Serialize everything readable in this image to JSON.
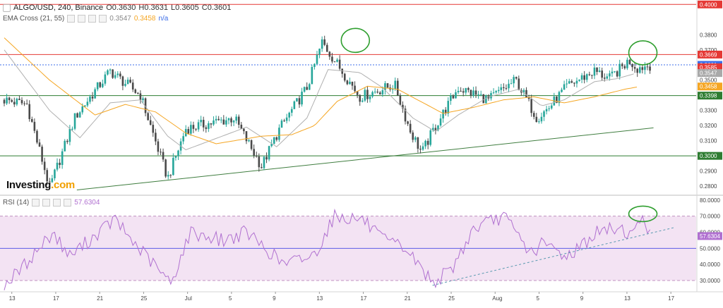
{
  "header": {
    "symbol": "ALGO/USD, 240, Binance",
    "ohlc": [
      {
        "k": "O",
        "v": "0.3630"
      },
      {
        "k": "H",
        "v": "0.3631"
      },
      {
        "k": "L",
        "v": "0.3605"
      },
      {
        "k": "C",
        "v": "0.3601"
      }
    ],
    "ema_label": "EMA Cross (21, 55)",
    "ema_fast": "0.3547",
    "ema_slow": "0.3458",
    "ema_na": "n/a"
  },
  "rsi_label": "RSI (14)",
  "rsi_value": "57.6304",
  "logo": {
    "text": "Investing",
    "suffix": ".com"
  },
  "colors": {
    "up": "#26a69a",
    "down": "#4a4a4a",
    "ema_fast": "#b0b0b0",
    "ema_slow": "#f5a623",
    "resistance": "#e53935",
    "support": "#2e7d32",
    "rsi": "#b070d0",
    "rsi_band": "#f3e3f3",
    "rsi_mid": "#5c5ce6",
    "circle": "#2e9e2e"
  },
  "chart_data": [
    {
      "type": "candlestick",
      "title": "ALGO/USD, 240, Binance",
      "y_ticks": [
        "0.3800",
        "0.3700",
        "0.3600",
        "0.3500",
        "0.3400",
        "0.3300",
        "0.3200",
        "0.3100",
        "0.3000",
        "0.2900",
        "0.2800"
      ],
      "x_ticks": [
        "13",
        "17",
        "21",
        "25",
        "Jul",
        "5",
        "9",
        "13",
        "17",
        "21",
        "25",
        "Aug",
        "5",
        "9",
        "13",
        "17"
      ],
      "ylim": [
        0.274,
        0.402
      ],
      "x_days": [
        -3,
        43
      ],
      "ohlc_path_days": [
        -3,
        -1.5,
        0,
        1.7,
        4,
        6,
        7.8,
        9,
        12.2,
        14,
        15.2,
        17,
        18,
        20.5,
        22.8,
        23.8,
        24.6,
        25.4,
        27,
        29,
        30.8,
        32.2,
        33,
        34.2,
        36,
        37,
        38.3,
        38.8,
        39.7
      ],
      "ohlc_path_close": [
        0.337,
        0.334,
        0.279,
        0.326,
        0.356,
        0.34,
        0.285,
        0.318,
        0.325,
        0.293,
        0.318,
        0.345,
        0.375,
        0.339,
        0.347,
        0.317,
        0.302,
        0.318,
        0.345,
        0.337,
        0.35,
        0.325,
        0.332,
        0.346,
        0.356,
        0.351,
        0.363,
        0.358,
        0.3601
      ],
      "ema_fast_days": [
        -3,
        0,
        2,
        4,
        6,
        7.8,
        9,
        13,
        15,
        17,
        18.4,
        20.5,
        22,
        24,
        25.5,
        27,
        29,
        31,
        32.5,
        34,
        36,
        37.5,
        38.8
      ],
      "ema_fast_values": [
        0.37,
        0.33,
        0.312,
        0.335,
        0.337,
        0.313,
        0.304,
        0.319,
        0.306,
        0.325,
        0.357,
        0.355,
        0.345,
        0.325,
        0.316,
        0.327,
        0.339,
        0.344,
        0.333,
        0.337,
        0.349,
        0.351,
        0.3547
      ],
      "ema_slow_days": [
        -3,
        0,
        3,
        5,
        7,
        9,
        11,
        14,
        16,
        17.5,
        19,
        21,
        23,
        24.5,
        26,
        28,
        30,
        32,
        34,
        36,
        38,
        39
      ],
      "ema_slow_values": [
        0.378,
        0.35,
        0.327,
        0.334,
        0.329,
        0.315,
        0.308,
        0.313,
        0.314,
        0.32,
        0.336,
        0.346,
        0.344,
        0.336,
        0.328,
        0.332,
        0.337,
        0.339,
        0.335,
        0.339,
        0.344,
        0.3458
      ],
      "resistance_levels": [
        0.4,
        0.3669,
        0.3601
      ],
      "support_levels": [
        0.3398,
        0.3
      ],
      "trendline": {
        "from": {
          "x": 1.8,
          "y": 0.2775
        },
        "to": {
          "x": 39.9,
          "y": 0.3185
        }
      },
      "circled_highs": [
        {
          "x": 20.2,
          "y": 0.3772
        },
        {
          "x": 39.2,
          "y": 0.369
        }
      ],
      "price_labels": [
        {
          "text": "0.4000",
          "value": 0.4,
          "color": "#e53935"
        },
        {
          "text": "0.3669",
          "value": 0.3669,
          "color": "#e53935"
        },
        {
          "text": "0.3601",
          "value": 0.3601,
          "color": "#3d6ee8"
        },
        {
          "text": "0.3585",
          "value": 0.3585,
          "color": "#e53935"
        },
        {
          "text": "0.3547",
          "value": 0.3547,
          "color": "#a9a9a9"
        },
        {
          "text": "0.3458",
          "value": 0.3458,
          "color": "#f5a623"
        },
        {
          "text": "0.3398",
          "value": 0.3398,
          "color": "#2e7d32"
        },
        {
          "text": "0.3000",
          "value": 0.3,
          "color": "#2e7d32"
        }
      ]
    },
    {
      "type": "line",
      "title": "RSI (14)",
      "series": [
        {
          "name": "RSI (14)",
          "last": 57.6304
        }
      ],
      "y_ticks": [
        "80.0000",
        "70.0000",
        "60.0000",
        "50.0000",
        "40.0000",
        "30.0000"
      ],
      "ylim": [
        23,
        83
      ],
      "band": [
        30,
        70
      ],
      "midline": 50,
      "rsi_path_days": [
        -3,
        -1.8,
        0.2,
        1.3,
        3,
        4.3,
        5.6,
        6.3,
        8,
        9.3,
        11.5,
        13,
        15.5,
        17.5,
        18.8,
        20.7,
        22,
        23.5,
        25.3,
        26.5,
        28,
        30,
        31.8,
        32.6,
        34.2,
        36.2,
        37.6,
        38.6,
        39.2,
        39.7
      ],
      "rsi_path_values": [
        27,
        38,
        60,
        45,
        58,
        68,
        53,
        46,
        28,
        60,
        55,
        60,
        40,
        46,
        70,
        68,
        55,
        50,
        29,
        36,
        62,
        70,
        47,
        53,
        45,
        60,
        63,
        58,
        72,
        57.6304
      ],
      "rsi_trendline": {
        "from": {
          "x": 25.3,
          "y": 27
        },
        "to": {
          "x": 41.3,
          "y": 63
        }
      },
      "rsi_circle": {
        "x": 39.2,
        "y": 71
      }
    }
  ]
}
